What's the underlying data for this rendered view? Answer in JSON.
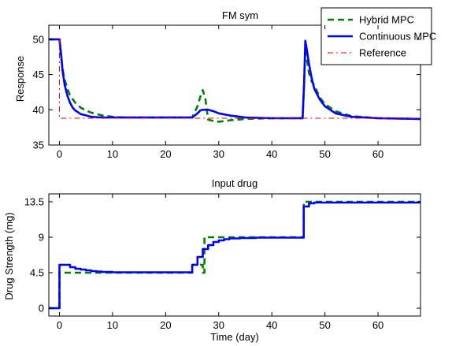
{
  "chart_data": [
    {
      "type": "line",
      "title": "FM sym",
      "xlabel": "",
      "ylabel": "Response",
      "xlim": [
        -2,
        68
      ],
      "ylim": [
        35,
        52
      ],
      "xticks": [
        0,
        10,
        20,
        30,
        40,
        50,
        60
      ],
      "yticks": [
        35,
        40,
        45,
        50
      ],
      "grid": false,
      "legend": "top-right",
      "series": [
        {
          "name": "Hybrid MPC",
          "color": "#007f00",
          "style": "dashed",
          "x": [
            -2,
            0,
            0.3,
            0.7,
            1,
            1.5,
            2,
            3,
            4,
            5,
            6,
            8,
            10,
            12,
            15,
            20,
            25,
            26,
            26.5,
            27,
            27.5,
            28,
            29,
            30,
            32,
            35,
            40,
            45.8,
            46.3,
            47,
            47.5,
            48,
            49,
            50,
            52,
            55,
            60,
            68
          ],
          "y": [
            50,
            50,
            47.5,
            45.3,
            44.2,
            43,
            42,
            41,
            40.3,
            39.9,
            39.6,
            39.2,
            39.0,
            38.9,
            38.9,
            38.9,
            38.9,
            40.5,
            41.8,
            42.8,
            41.5,
            38.6,
            38.4,
            38.3,
            38.5,
            38.7,
            38.8,
            38.8,
            48.5,
            45.2,
            44,
            43.5,
            41.8,
            40.8,
            39.8,
            39.1,
            38.8,
            38.7
          ]
        },
        {
          "name": "Continuous MPC",
          "color": "#0000ff",
          "style": "solid",
          "x": [
            -2,
            0,
            0.3,
            0.6,
            1,
            1.5,
            2,
            2.5,
            3,
            4,
            5,
            6,
            8,
            10,
            15,
            20,
            25,
            26,
            26.5,
            27,
            28,
            29,
            30,
            32,
            35,
            40,
            45.8,
            46.1,
            46.3,
            46.6,
            47,
            47.5,
            48,
            49,
            50,
            52,
            55,
            60,
            68
          ],
          "y": [
            50,
            50,
            48,
            45.5,
            43.5,
            42,
            41,
            40.3,
            39.9,
            39.4,
            39.2,
            39.0,
            38.9,
            38.9,
            38.9,
            38.9,
            38.9,
            39.5,
            39.9,
            40.0,
            40.0,
            39.8,
            39.5,
            39.2,
            38.9,
            38.8,
            38.8,
            44,
            49.8,
            48.5,
            46.5,
            44.5,
            43,
            41.5,
            40.5,
            39.5,
            39.0,
            38.8,
            38.7
          ]
        },
        {
          "name": "Reference",
          "color": "#ff0000",
          "style": "dash-dot",
          "x": [
            0,
            0,
            68
          ],
          "y": [
            50,
            38.8,
            38.8
          ]
        }
      ]
    },
    {
      "type": "line",
      "title": "Input drug",
      "xlabel": "Time (day)",
      "ylabel": "Drug Strength (mg)",
      "xlim": [
        -2,
        68
      ],
      "ylim": [
        -1,
        14.5
      ],
      "xticks": [
        0,
        10,
        20,
        30,
        40,
        50,
        60
      ],
      "xtick_labels": [
        "0",
        "10",
        "20",
        "30",
        "40",
        "50",
        "60"
      ],
      "yticks": [
        0,
        4.5,
        9,
        13.5
      ],
      "ytick_labels": [
        "0",
        "4.5",
        "9",
        "13.5"
      ],
      "grid": false,
      "series": [
        {
          "name": "Hybrid MPC",
          "color": "#007f00",
          "style": "dashed",
          "x": [
            -2,
            0,
            0,
            25,
            25,
            27,
            27,
            27.3,
            27.3,
            46,
            46,
            68
          ],
          "y": [
            0,
            0,
            4.5,
            4.5,
            5.5,
            5.5,
            4.5,
            4.5,
            9,
            9,
            13.5,
            13.5
          ]
        },
        {
          "name": "Continuous MPC",
          "color": "#0000ff",
          "style": "solid",
          "x": [
            -2,
            0,
            0,
            2,
            2,
            3,
            3,
            4,
            4,
            5,
            5,
            6,
            6,
            7,
            7,
            8,
            8,
            10,
            10,
            25,
            25,
            26,
            26,
            27,
            27,
            28,
            28,
            29,
            29,
            30,
            30,
            31,
            31,
            32,
            32,
            34,
            34,
            37,
            37,
            46,
            46,
            47,
            47,
            48,
            48,
            68
          ],
          "y": [
            0,
            0,
            5.5,
            5.5,
            5.2,
            5.2,
            5.0,
            5.0,
            4.9,
            4.9,
            4.8,
            4.8,
            4.7,
            4.7,
            4.65,
            4.65,
            4.6,
            4.6,
            4.55,
            4.55,
            5.5,
            5.5,
            6.5,
            6.5,
            7.5,
            7.5,
            8.0,
            8.0,
            8.4,
            8.4,
            8.6,
            8.6,
            8.75,
            8.75,
            8.85,
            8.85,
            8.9,
            8.9,
            8.95,
            8.95,
            12.9,
            12.9,
            13.3,
            13.3,
            13.4,
            13.4
          ]
        }
      ]
    }
  ]
}
